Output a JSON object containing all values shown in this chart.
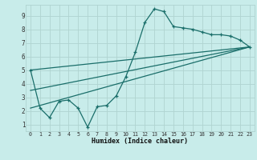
{
  "xlabel": "Humidex (Indice chaleur)",
  "bg_color": "#c8ecea",
  "line_color": "#1a6e6a",
  "grid_color": "#b0d4d0",
  "xlim": [
    -0.5,
    23.5
  ],
  "ylim": [
    0.5,
    9.8
  ],
  "xticks": [
    0,
    1,
    2,
    3,
    4,
    5,
    6,
    7,
    8,
    9,
    10,
    11,
    12,
    13,
    14,
    15,
    16,
    17,
    18,
    19,
    20,
    21,
    22,
    23
  ],
  "yticks": [
    1,
    2,
    3,
    4,
    5,
    6,
    7,
    8,
    9
  ],
  "line1_x": [
    0,
    1,
    2,
    3,
    4,
    5,
    6,
    7,
    8,
    9,
    10,
    11,
    12,
    13,
    14,
    15,
    16,
    17,
    18,
    19,
    20,
    21,
    22,
    23
  ],
  "line1_y": [
    5.0,
    2.2,
    1.5,
    2.7,
    2.8,
    2.2,
    0.8,
    2.3,
    2.4,
    3.1,
    4.5,
    6.3,
    8.5,
    9.5,
    9.3,
    8.2,
    8.1,
    8.0,
    7.8,
    7.6,
    7.6,
    7.5,
    7.2,
    6.7
  ],
  "line2_x": [
    0,
    23
  ],
  "line2_y": [
    5.0,
    6.7
  ],
  "line3_x": [
    0,
    23
  ],
  "line3_y": [
    2.2,
    6.7
  ],
  "line4_x": [
    0,
    23
  ],
  "line4_y": [
    3.5,
    6.7
  ]
}
